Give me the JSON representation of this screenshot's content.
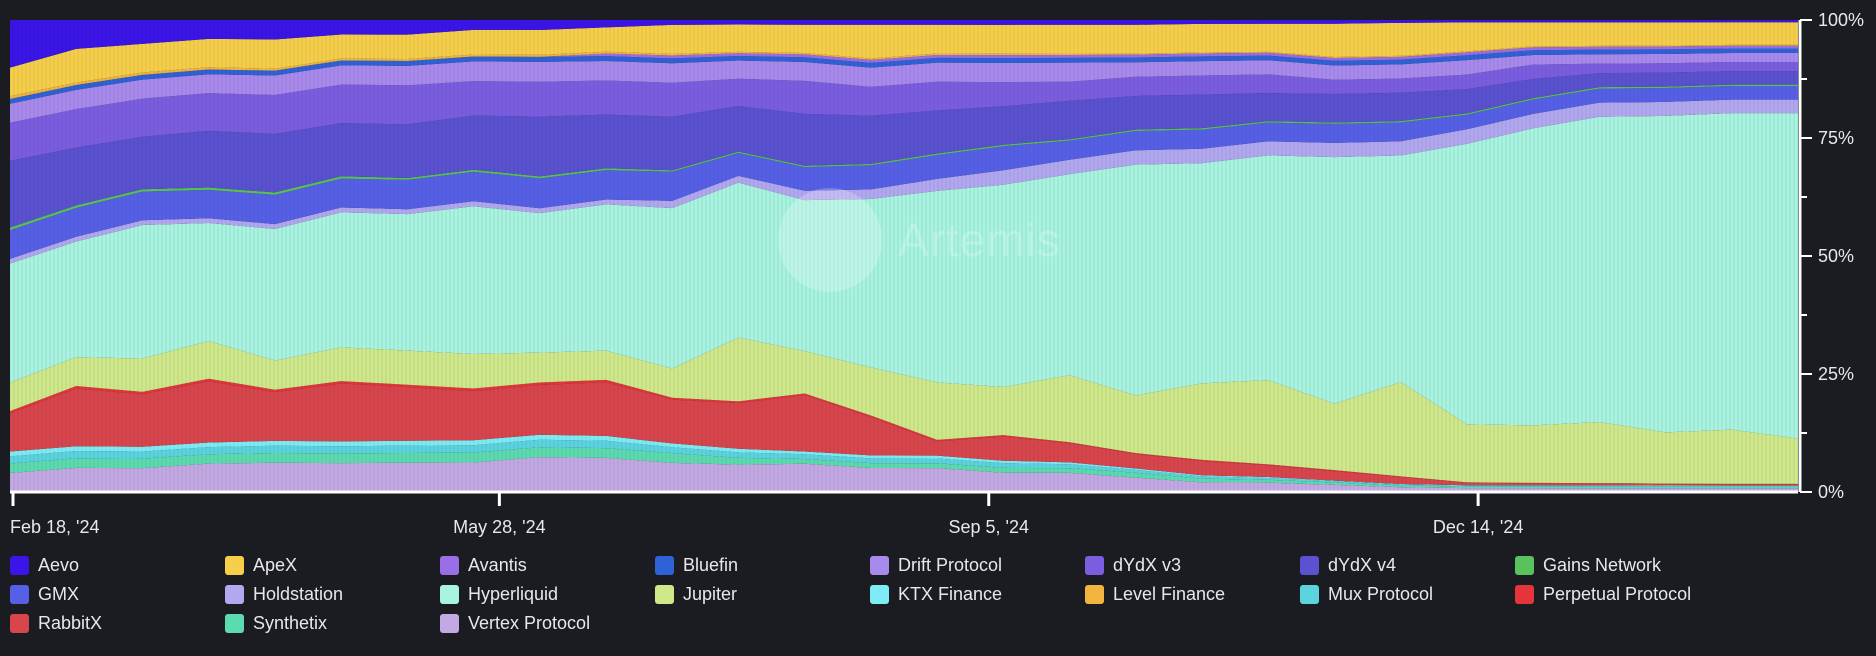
{
  "chart_data": {
    "type": "area",
    "stacked": "percent",
    "title": "",
    "x_tick_labels": [
      "Feb 18, '24",
      "May 28, '24",
      "Sep 5, '24",
      "Dec 14, '24"
    ],
    "y_tick_labels": [
      "0%",
      "25%",
      "50%",
      "75%",
      "100%"
    ],
    "ylim": [
      0,
      100
    ],
    "watermark": "Artemis",
    "x": [
      "2024-02-18",
      "2024-03-03",
      "2024-03-17",
      "2024-03-31",
      "2024-04-14",
      "2024-04-28",
      "2024-05-12",
      "2024-05-28",
      "2024-06-09",
      "2024-06-23",
      "2024-07-07",
      "2024-07-21",
      "2024-08-04",
      "2024-08-18",
      "2024-09-05",
      "2024-09-15",
      "2024-09-29",
      "2024-10-13",
      "2024-10-27",
      "2024-11-10",
      "2024-11-24",
      "2024-12-14",
      "2024-12-22",
      "2025-01-05",
      "2025-01-19",
      "2025-02-02",
      "2025-02-16",
      "2025-03-02"
    ],
    "series": [
      {
        "name": "Vertex Protocol",
        "color": "#c3a9e4",
        "values": [
          4,
          5,
          5,
          6,
          6,
          6,
          6,
          6,
          7,
          7,
          6,
          6,
          6,
          5,
          5,
          4,
          4,
          3,
          2,
          2,
          1.5,
          1,
          0.8,
          0.8,
          0.8,
          0.8,
          0.8,
          0.8
        ]
      },
      {
        "name": "Synthetix",
        "color": "#5ddbb0",
        "values": [
          2,
          2,
          2,
          2,
          2,
          2,
          2,
          2,
          2,
          2,
          2,
          1.5,
          1,
          1,
          1,
          1,
          1,
          1,
          0.8,
          0.6,
          0.5,
          0.4,
          0.3,
          0.3,
          0.3,
          0.3,
          0.3,
          0.3
        ]
      },
      {
        "name": "Mux Protocol",
        "color": "#5cd4e0",
        "values": [
          1.5,
          1.5,
          1.5,
          1.5,
          1.5,
          1.5,
          1.5,
          1.5,
          1.5,
          1.5,
          1.2,
          1.2,
          1,
          1,
          1,
          1,
          0.8,
          0.6,
          0.5,
          0.4,
          0.3,
          0.2,
          0.2,
          0.2,
          0.2,
          0.2,
          0.2,
          0.2
        ]
      },
      {
        "name": "KTX Finance",
        "color": "#7eecf5",
        "values": [
          1,
          1,
          1,
          1,
          1,
          1,
          1,
          1,
          1,
          1,
          0.8,
          0.8,
          0.6,
          0.6,
          0.6,
          0.5,
          0.4,
          0.3,
          0.2,
          0.2,
          0.1,
          0.1,
          0.1,
          0.1,
          0.1,
          0.1,
          0.1,
          0.1
        ]
      },
      {
        "name": "RabbitX",
        "color": "#d9454c",
        "values": [
          8,
          12,
          11,
          13,
          10,
          12,
          11,
          10,
          10,
          11,
          9,
          10,
          12,
          8,
          3,
          5,
          4,
          3,
          3,
          2.5,
          2,
          1.5,
          0.5,
          0.4,
          0.4,
          0.3,
          0.3,
          0.3
        ]
      },
      {
        "name": "Perpetual Protocol",
        "color": "#e6353a",
        "values": [
          0.5,
          0.5,
          0.5,
          0.5,
          0.5,
          0.5,
          0.5,
          0.5,
          0.5,
          0.5,
          0.4,
          0.4,
          0.3,
          0.3,
          0.3,
          0.3,
          0.2,
          0.2,
          0.2,
          0.2,
          0.2,
          0.1,
          0.1,
          0.1,
          0.1,
          0.1,
          0.1,
          0.1
        ]
      },
      {
        "name": "Jupiter",
        "color": "#cfe88a",
        "values": [
          6,
          6,
          7,
          8,
          6,
          7,
          7,
          7,
          6,
          6,
          6,
          14,
          9,
          10,
          12,
          10,
          14,
          12,
          16,
          18,
          14,
          20,
          12,
          12,
          13,
          11,
          12,
          10
        ]
      },
      {
        "name": "Hyperliquid",
        "color": "#a8f4e0",
        "values": [
          25,
          24,
          28,
          25,
          27,
          28,
          28,
          30,
          28,
          30,
          33,
          34,
          32,
          35,
          40,
          42,
          42,
          48,
          46,
          48,
          52,
          48,
          58,
          62,
          65,
          68,
          70,
          72
        ]
      },
      {
        "name": "Holdstation",
        "color": "#b2a8f0",
        "values": [
          1,
          1,
          1,
          1,
          1,
          1,
          1,
          1,
          1,
          1,
          1.5,
          1.5,
          2,
          2,
          2.5,
          3,
          3,
          3,
          3,
          3,
          3,
          3,
          3,
          3,
          3,
          3,
          3,
          3
        ]
      },
      {
        "name": "GMX",
        "color": "#5560e6",
        "values": [
          6,
          6,
          6,
          6,
          6,
          6,
          6,
          6,
          6,
          6,
          6,
          5,
          5,
          5,
          5,
          5,
          4,
          4,
          4,
          4,
          4,
          4,
          3,
          3,
          3,
          3,
          3,
          3
        ]
      },
      {
        "name": "Gains Network",
        "color": "#59c25c",
        "values": [
          0.6,
          0.5,
          0.5,
          0.5,
          0.5,
          0.5,
          0.4,
          0.4,
          0.4,
          0.4,
          0.3,
          0.3,
          0.3,
          0.3,
          0.3,
          0.3,
          0.3,
          0.3,
          0.3,
          0.3,
          0.3,
          0.3,
          0.3,
          0.3,
          0.3,
          0.3,
          0.3,
          0.3
        ]
      },
      {
        "name": "dYdX v4",
        "color": "#5a52d0",
        "values": [
          14,
          12,
          11,
          12,
          12,
          11,
          11,
          11,
          12,
          11,
          11,
          10,
          11,
          10,
          9,
          8,
          8,
          7,
          7,
          6,
          6,
          6,
          5,
          4,
          3,
          3,
          3,
          3
        ]
      },
      {
        "name": "dYdX v3",
        "color": "#7b5de0",
        "values": [
          8,
          8,
          8,
          8,
          8,
          8,
          8,
          7,
          7,
          7,
          7,
          6,
          7,
          6,
          6,
          5,
          4,
          4,
          4,
          4,
          3,
          3,
          3,
          3,
          2,
          2,
          2,
          2
        ]
      },
      {
        "name": "Drift Protocol",
        "color": "#a889ec",
        "values": [
          4,
          4,
          4,
          4,
          4,
          4,
          4,
          4,
          4,
          4,
          4,
          4,
          4,
          4,
          4,
          4,
          4,
          3,
          3,
          3,
          3,
          3,
          3,
          2,
          2,
          2,
          2,
          2
        ]
      },
      {
        "name": "Bluefin",
        "color": "#2f62d6",
        "values": [
          1,
          1,
          1,
          1,
          1,
          1,
          1,
          1,
          1,
          1,
          1,
          1,
          1,
          1,
          1,
          1,
          1,
          1,
          1,
          1,
          1,
          1,
          1,
          1,
          1,
          1,
          1,
          1
        ]
      },
      {
        "name": "Avantis",
        "color": "#9a6ee6",
        "values": [
          0,
          0,
          0,
          0,
          0,
          0,
          0,
          0,
          0,
          0.5,
          0.6,
          0.6,
          0.6,
          0.6,
          0.6,
          0.6,
          0.6,
          0.6,
          0.6,
          0.6,
          0.6,
          0.6,
          0.6,
          0.6,
          0.6,
          0.6,
          0.6,
          0.6
        ]
      },
      {
        "name": "Level Finance",
        "color": "#f2b43f",
        "values": [
          0.6,
          0.5,
          0.5,
          0.5,
          0.4,
          0.4,
          0.4,
          0.4,
          0.4,
          0.4,
          0.3,
          0.3,
          0.3,
          0.3,
          0.3,
          0.3,
          0.3,
          0.2,
          0.2,
          0.2,
          0.2,
          0.2,
          0.2,
          0.2,
          0.2,
          0.2,
          0.2,
          0.2
        ]
      },
      {
        "name": "ApeX",
        "color": "#f5cf4a",
        "values": [
          6,
          7,
          6,
          6,
          6,
          5,
          5,
          5,
          5,
          5,
          6,
          6,
          6,
          7,
          6,
          6,
          6,
          6,
          6,
          6,
          7,
          7,
          6,
          5,
          5,
          5,
          5,
          5
        ]
      },
      {
        "name": "Aevo",
        "color": "#3b14e8",
        "values": [
          10,
          6,
          5,
          4,
          4,
          3,
          3,
          2,
          2,
          1.5,
          1,
          1,
          1,
          1,
          1,
          1,
          1,
          1,
          0.8,
          0.8,
          0.8,
          0.6,
          0.5,
          0.5,
          0.5,
          0.5,
          0.5,
          0.5
        ]
      }
    ]
  },
  "legend": {
    "items": [
      {
        "label": "Aevo",
        "color": "#3b14e8"
      },
      {
        "label": "ApeX",
        "color": "#f5cf4a"
      },
      {
        "label": "Avantis",
        "color": "#9a6ee6"
      },
      {
        "label": "Bluefin",
        "color": "#2f62d6"
      },
      {
        "label": "Drift Protocol",
        "color": "#a889ec"
      },
      {
        "label": "dYdX v3",
        "color": "#7b5de0"
      },
      {
        "label": "dYdX v4",
        "color": "#5a52d0"
      },
      {
        "label": "Gains Network",
        "color": "#59c25c"
      },
      {
        "label": "GMX",
        "color": "#5560e6"
      },
      {
        "label": "Holdstation",
        "color": "#b2a8f0"
      },
      {
        "label": "Hyperliquid",
        "color": "#a8f4e0"
      },
      {
        "label": "Jupiter",
        "color": "#cfe88a"
      },
      {
        "label": "KTX Finance",
        "color": "#7eecf5"
      },
      {
        "label": "Level Finance",
        "color": "#f2b43f"
      },
      {
        "label": "Mux Protocol",
        "color": "#5cd4e0"
      },
      {
        "label": "Perpetual Protocol",
        "color": "#e6353a"
      },
      {
        "label": "RabbitX",
        "color": "#d9454c"
      },
      {
        "label": "Synthetix",
        "color": "#5ddbb0"
      },
      {
        "label": "Vertex Protocol",
        "color": "#c3a9e4"
      }
    ]
  }
}
